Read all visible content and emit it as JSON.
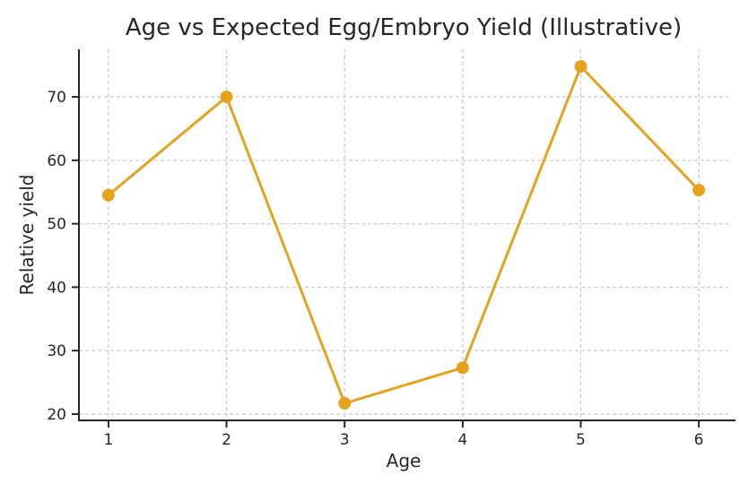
{
  "chart_data": {
    "type": "line",
    "title": "Age vs Expected Egg/Embryo Yield (Illustrative)",
    "xlabel": "Age",
    "ylabel": "Relative yield",
    "x": [
      1,
      2,
      3,
      4,
      5,
      6
    ],
    "y": [
      54.5,
      70.0,
      21.7,
      27.3,
      74.8,
      55.3
    ],
    "series_name": "Relative yield",
    "xticks": [
      1,
      2,
      3,
      4,
      5,
      6
    ],
    "yticks": [
      20,
      30,
      40,
      50,
      60,
      70
    ],
    "xlim": [
      0.75,
      6.25
    ],
    "ylim": [
      19.0,
      77.5
    ],
    "grid": "dashed, both axes",
    "legend": "none",
    "colors": {
      "line": "#E5A31D",
      "marker": "#E5A31D",
      "grid": "#cdcdcd",
      "axis": "#262626",
      "text": "#262626",
      "background": "#ffffff"
    },
    "marker_style": "circle",
    "marker_radius": 7,
    "line_width": 3
  }
}
